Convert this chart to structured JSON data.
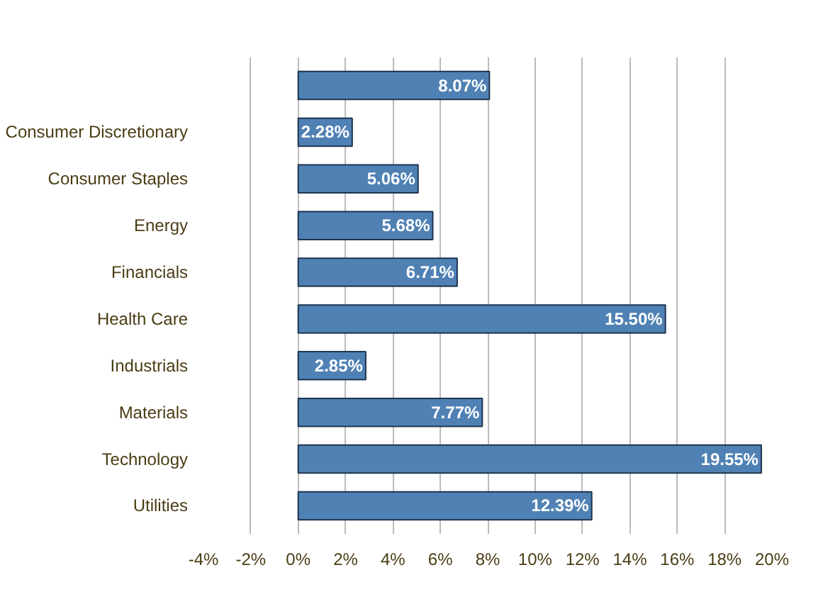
{
  "chart_data": {
    "type": "bar",
    "orientation": "horizontal",
    "categories": [
      null,
      "Consumer Discretionary",
      "Consumer Staples",
      "Energy",
      "Financials",
      "Health Care",
      "Industrials",
      "Materials",
      "Technology",
      "Utilities"
    ],
    "values": [
      8.07,
      2.28,
      5.06,
      5.68,
      6.71,
      15.5,
      2.85,
      7.77,
      19.55,
      12.39
    ],
    "value_labels": [
      "8.07%",
      "2.28%",
      "5.06%",
      "5.68%",
      "6.71%",
      "15.50%",
      "2.85%",
      "7.77%",
      "19.55%",
      "12.39%"
    ],
    "color": "#4f81b4",
    "xlim": [
      -4,
      20
    ],
    "xticks": [
      {
        "value": -4,
        "label": "-4%"
      },
      {
        "value": -2,
        "label": "-2%"
      },
      {
        "value": 0,
        "label": "0%"
      },
      {
        "value": 2,
        "label": "2%"
      },
      {
        "value": 4,
        "label": "4%"
      },
      {
        "value": 6,
        "label": "6%"
      },
      {
        "value": 8,
        "label": "8%"
      },
      {
        "value": 10,
        "label": "10%"
      },
      {
        "value": 12,
        "label": "12%"
      },
      {
        "value": 14,
        "label": "14%"
      },
      {
        "value": 16,
        "label": "16%"
      },
      {
        "value": 18,
        "label": "18%"
      },
      {
        "value": 20,
        "label": "20%"
      }
    ],
    "grid": "x"
  }
}
